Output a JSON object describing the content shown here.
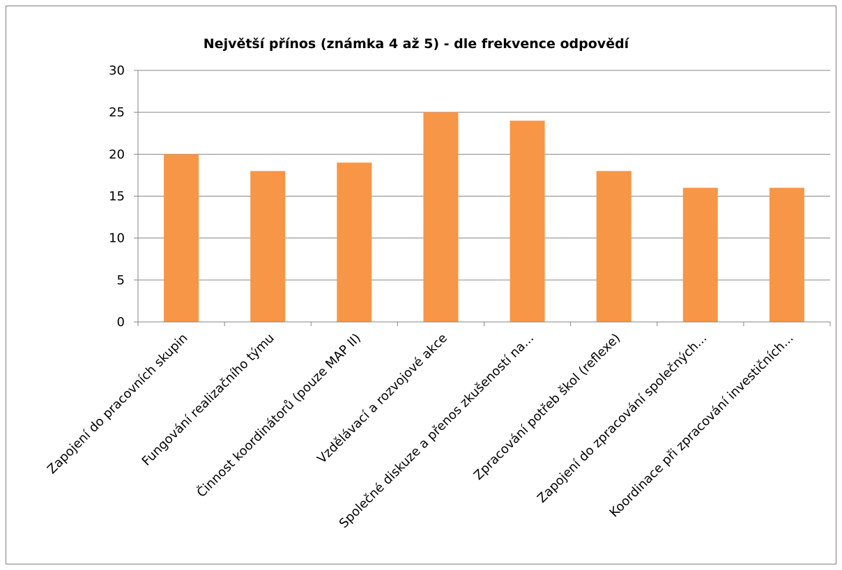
{
  "chart_data": {
    "type": "bar",
    "title": "Největší přínos (známka 4 až 5) - dle frekvence odpovědí",
    "xlabel": "",
    "ylabel": "",
    "categories": [
      "Zapojení do pracovních skupin",
      "Fungování realizačního týmu",
      "Činnost koordinátorů (pouze MAP II)",
      "Vzdělávací a rozvojové akce",
      "Společné diskuze a přenos zkušeností na...",
      "Zpracování potřeb škol (reflexe)",
      "Zapojení do zpracování společných...",
      "Koordinace při zpracování investičních..."
    ],
    "values": [
      20,
      18,
      19,
      25,
      24,
      18,
      16,
      16
    ],
    "ylim": [
      0,
      30
    ],
    "yticks": [
      0,
      5,
      10,
      15,
      20,
      25,
      30
    ],
    "grid": true,
    "legend": "none",
    "bar_color": "#F79646"
  }
}
